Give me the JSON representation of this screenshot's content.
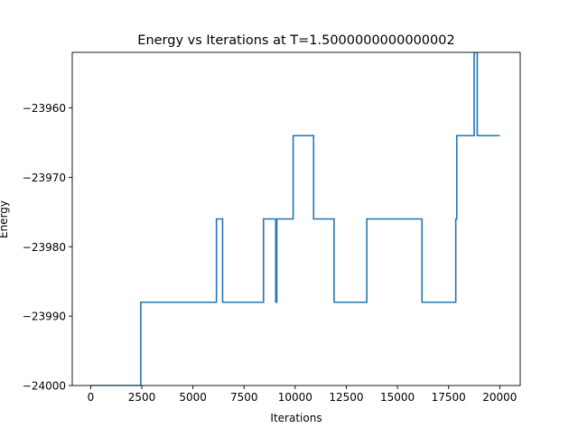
{
  "chart_data": {
    "type": "line",
    "title": "Energy vs Iterations at T=1.5000000000000002",
    "xlabel": "Iterations",
    "ylabel": "Energy",
    "xlim": [
      -900,
      21000
    ],
    "ylim": [
      -24000,
      -23952
    ],
    "x_ticks": [
      0,
      2500,
      5000,
      7500,
      10000,
      12500,
      15000,
      17500,
      20000
    ],
    "x_tick_labels": [
      "0",
      "2500",
      "5000",
      "7500",
      "10000",
      "12500",
      "15000",
      "17500",
      "20000"
    ],
    "y_ticks": [
      -24000,
      -23990,
      -23980,
      -23970,
      -23960
    ],
    "y_tick_labels": [
      "−24000",
      "−23990",
      "−23980",
      "−23970",
      "−23960"
    ],
    "grid": false,
    "series": [
      {
        "color": "#1f77b4",
        "step": true,
        "x": [
          0,
          2450,
          2450,
          6150,
          6150,
          6450,
          6450,
          8450,
          8450,
          9050,
          9050,
          9100,
          9100,
          9900,
          9900,
          10900,
          10900,
          11900,
          11900,
          13500,
          13500,
          16200,
          16200,
          17850,
          17850,
          17900,
          17900,
          18750,
          18750,
          18900,
          18900,
          20000
        ],
        "y": [
          -24000,
          -24000,
          -23988,
          -23988,
          -23976,
          -23976,
          -23988,
          -23988,
          -23976,
          -23976,
          -23988,
          -23988,
          -23976,
          -23976,
          -23964,
          -23964,
          -23976,
          -23976,
          -23988,
          -23988,
          -23976,
          -23976,
          -23988,
          -23988,
          -23976,
          -23976,
          -23964,
          -23964,
          -23952,
          -23952,
          -23964,
          -23964
        ]
      }
    ]
  }
}
